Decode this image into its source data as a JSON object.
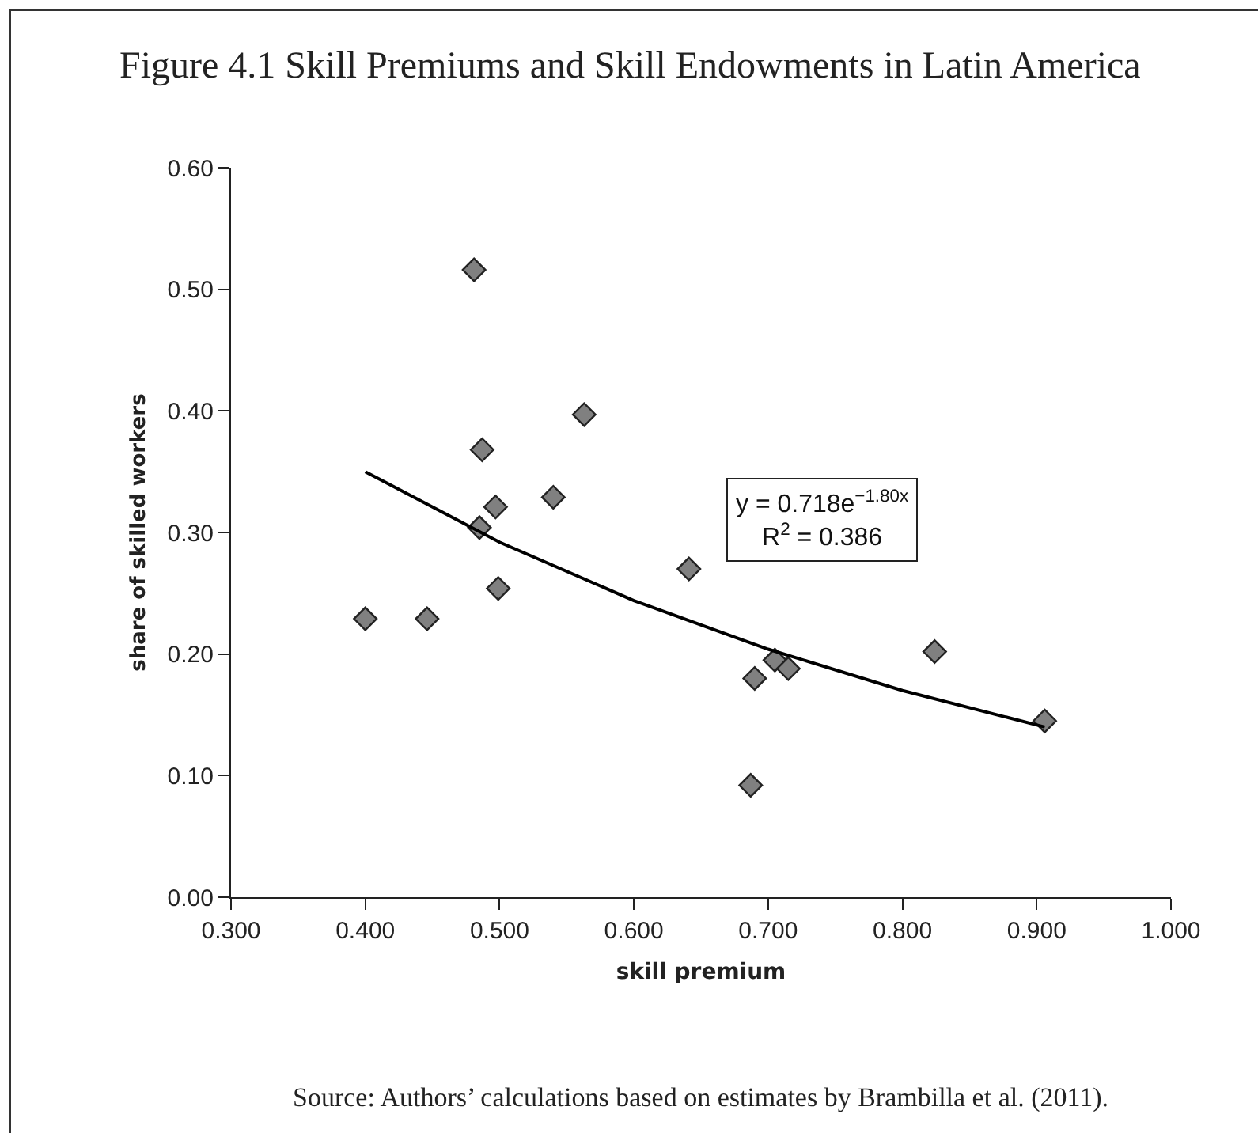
{
  "chart_data": {
    "type": "scatter",
    "title": "Figure 4.1 Skill Premiums and Skill Endowments in Latin America",
    "xlabel": "skill premium",
    "ylabel": "share of skilled workers",
    "xlim": [
      0.3,
      1.0
    ],
    "xticks": [
      {
        "value": 0.3,
        "label": "0.300"
      },
      {
        "value": 0.4,
        "label": "0.400"
      },
      {
        "value": 0.5,
        "label": "0.500"
      },
      {
        "value": 0.6,
        "label": "0.600"
      },
      {
        "value": 0.7,
        "label": "0.700"
      },
      {
        "value": 0.8,
        "label": "0.800"
      },
      {
        "value": 0.9,
        "label": "0.900"
      },
      {
        "value": 1.0,
        "label": "1.000"
      }
    ],
    "ylim": [
      0,
      0.6
    ],
    "yticks": [
      {
        "value": 0,
        "label": "0.00"
      },
      {
        "value": 0.1,
        "label": "0.10"
      },
      {
        "value": 0.2,
        "label": "0.20"
      },
      {
        "value": 0.3,
        "label": "0.30"
      },
      {
        "value": 0.4,
        "label": "0.40"
      },
      {
        "value": 0.5,
        "label": "0.50"
      },
      {
        "value": 0.6,
        "label": "0.60"
      }
    ],
    "grid": false,
    "marker": "diamond",
    "series": [
      {
        "color": "#808080",
        "x": [
          0.4,
          0.446,
          0.481,
          0.487,
          0.485,
          0.497,
          0.499,
          0.54,
          0.563,
          0.641,
          0.69,
          0.687,
          0.705,
          0.715,
          0.824,
          0.906
        ],
        "values": [
          0.229,
          0.229,
          0.516,
          0.368,
          0.304,
          0.321,
          0.254,
          0.329,
          0.397,
          0.27,
          0.18,
          0.092,
          0.195,
          0.188,
          0.202,
          0.145
        ]
      },
      {
        "type": "line",
        "color": "#000000",
        "line_style": "solid",
        "marker": "none",
        "x": [
          0.4,
          0.5,
          0.6,
          0.7,
          0.8,
          0.906
        ],
        "values": [
          0.35,
          0.292,
          0.244,
          0.204,
          0.17,
          0.14
        ]
      }
    ],
    "annotations": [
      "y = 0.718e$^{−1.80x}$\nR$^{2}$ = 0.386",
      "Source: Authors’ calculations based on estimates by Brambilla et al. (2011)."
    ]
  }
}
